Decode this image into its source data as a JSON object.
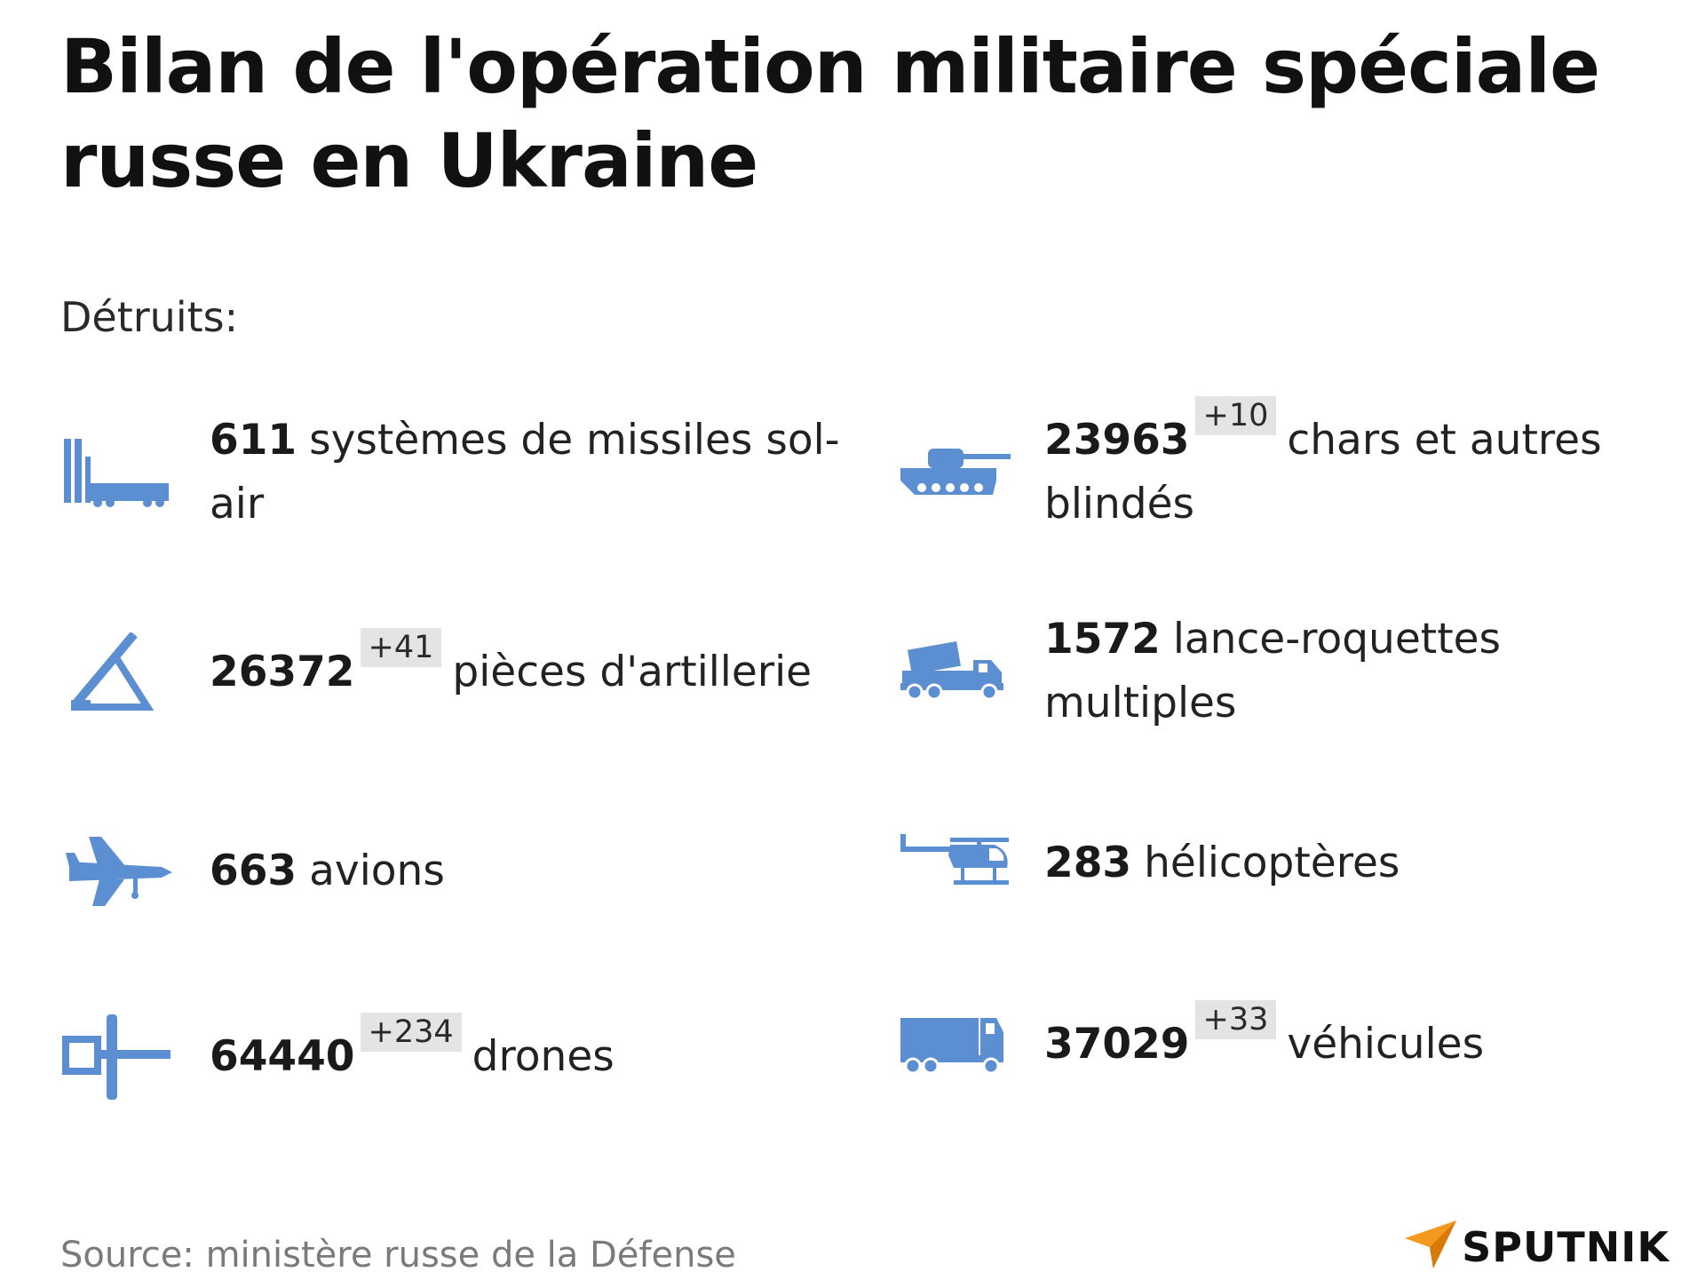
{
  "title": "Bilan de l'opération militaire spéciale russe en Ukraine",
  "subtitle": "Détruits:",
  "items": [
    {
      "icon": "missile-launcher-icon",
      "count": "611",
      "delta": "",
      "label": "systèmes de missiles sol-air"
    },
    {
      "icon": "tank-icon",
      "count": "23963",
      "delta": "+10",
      "label": "chars et autres blindés"
    },
    {
      "icon": "artillery-icon",
      "count": "26372",
      "delta": "+41",
      "label": "pièces d'artillerie"
    },
    {
      "icon": "rocket-launcher-truck-icon",
      "count": "1572",
      "delta": "",
      "label": "lance-roquettes multiples"
    },
    {
      "icon": "airplane-icon",
      "count": "663",
      "delta": "",
      "label": "avions"
    },
    {
      "icon": "helicopter-icon",
      "count": "283",
      "delta": "",
      "label": "hélicoptères"
    },
    {
      "icon": "drone-icon",
      "count": "64440",
      "delta": "+234",
      "label": "drones"
    },
    {
      "icon": "truck-icon",
      "count": "37029",
      "delta": "+33",
      "label": "véhicules"
    }
  ],
  "source": "Source: ministère russe de la Défense",
  "brand": "SPUTNIK",
  "colors": {
    "icon": "#5b8fd1",
    "logo_accent": "#f39a1e",
    "delta_bg": "#e4e4e4"
  }
}
